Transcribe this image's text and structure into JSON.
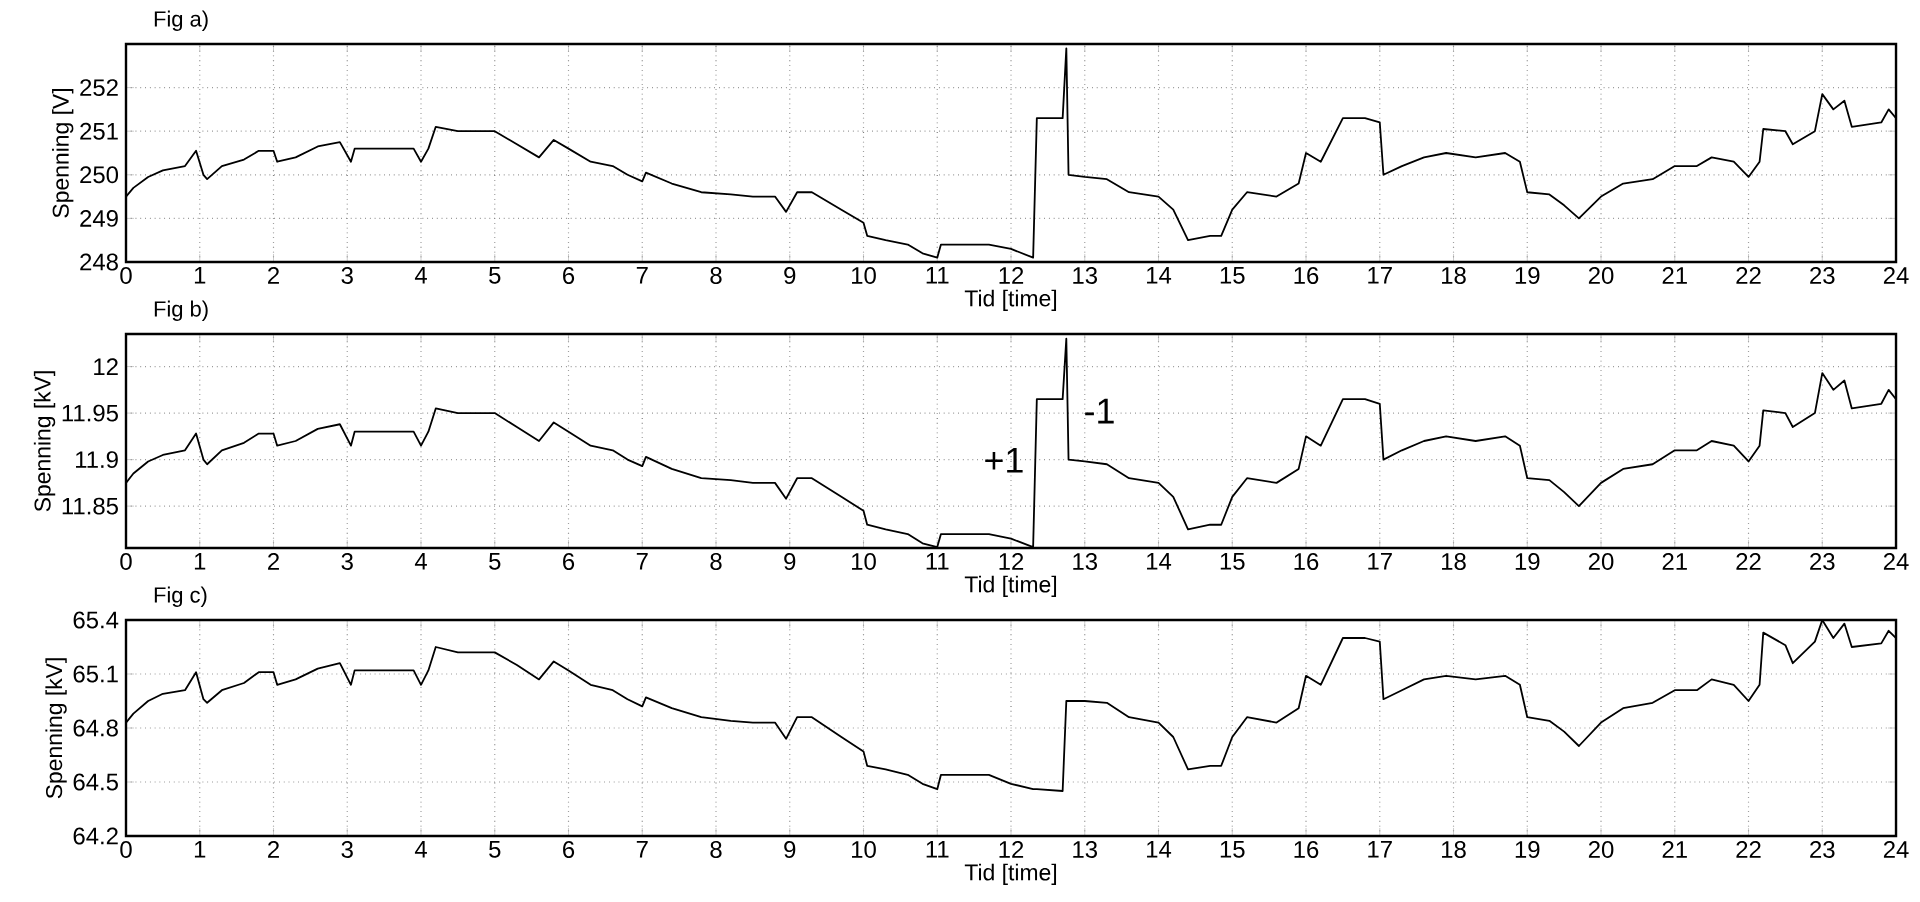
{
  "chart_data": [
    {
      "type": "line",
      "title": "Fig a)",
      "xlabel": "Tid [time]",
      "ylabel": "Spenning [V]",
      "xlim": [
        0,
        24
      ],
      "ylim": [
        248,
        253
      ],
      "xticks": [
        0,
        1,
        2,
        3,
        4,
        5,
        6,
        7,
        8,
        9,
        10,
        11,
        12,
        13,
        14,
        15,
        16,
        17,
        18,
        19,
        20,
        21,
        22,
        23,
        24
      ],
      "yticks": [
        248,
        249,
        250,
        251,
        252
      ],
      "grid": true,
      "x": [
        0,
        0.1,
        0.3,
        0.5,
        0.8,
        0.95,
        1.05,
        1.1,
        1.3,
        1.6,
        1.8,
        2.0,
        2.05,
        2.3,
        2.6,
        2.9,
        3.05,
        3.1,
        3.5,
        3.9,
        4.0,
        4.1,
        4.2,
        4.5,
        5.0,
        5.3,
        5.6,
        5.8,
        6.0,
        6.3,
        6.6,
        6.8,
        7.0,
        7.05,
        7.4,
        7.8,
        8.2,
        8.5,
        8.8,
        8.95,
        9.1,
        9.3,
        9.7,
        10.0,
        10.05,
        10.3,
        10.6,
        10.8,
        11.0,
        11.05,
        11.3,
        11.7,
        12.0,
        12.3,
        12.35,
        12.7,
        12.75,
        12.78,
        13.0,
        13.3,
        13.6,
        14.0,
        14.2,
        14.4,
        14.7,
        14.85,
        15.0,
        15.2,
        15.6,
        15.9,
        16.0,
        16.2,
        16.5,
        16.8,
        17.0,
        17.05,
        17.3,
        17.6,
        17.9,
        18.3,
        18.7,
        18.9,
        19.0,
        19.3,
        19.5,
        19.7,
        20.0,
        20.3,
        20.7,
        21.0,
        21.3,
        21.5,
        21.8,
        22.0,
        22.15,
        22.2,
        22.5,
        22.6,
        22.9,
        23.0,
        23.15,
        23.3,
        23.4,
        23.8,
        23.9,
        24
      ],
      "series": [
        {
          "color": "#000000",
          "values": [
            249.5,
            249.7,
            249.95,
            250.1,
            250.2,
            250.55,
            250.0,
            249.9,
            250.2,
            250.35,
            250.55,
            250.55,
            250.3,
            250.4,
            250.65,
            250.75,
            250.3,
            250.6,
            250.6,
            250.6,
            250.3,
            250.6,
            251.1,
            251.0,
            251.0,
            250.7,
            250.4,
            250.8,
            250.6,
            250.3,
            250.2,
            250.0,
            249.85,
            250.05,
            249.8,
            249.6,
            249.55,
            249.5,
            249.5,
            249.15,
            249.6,
            249.6,
            249.2,
            248.9,
            248.6,
            248.5,
            248.4,
            248.2,
            248.1,
            248.4,
            248.4,
            248.4,
            248.3,
            248.1,
            251.3,
            251.3,
            252.9,
            250.0,
            249.95,
            249.9,
            249.6,
            249.5,
            249.2,
            248.5,
            248.6,
            248.6,
            249.2,
            249.6,
            249.5,
            249.8,
            250.5,
            250.3,
            251.3,
            251.3,
            251.2,
            250.0,
            250.2,
            250.4,
            250.5,
            250.4,
            250.5,
            250.3,
            249.6,
            249.55,
            249.3,
            249.0,
            249.5,
            249.8,
            249.9,
            250.2,
            250.2,
            250.4,
            250.3,
            249.95,
            250.3,
            251.05,
            251.0,
            250.7,
            251.0,
            251.85,
            251.5,
            251.7,
            251.1,
            251.2,
            251.5,
            251.3
          ]
        }
      ]
    },
    {
      "type": "line",
      "title": "Fig b)",
      "xlabel": "Tid [time]",
      "ylabel": "Spenning [kV]",
      "xlim": [
        0,
        24
      ],
      "ylim": [
        11.805,
        12.035
      ],
      "xticks": [
        0,
        1,
        2,
        3,
        4,
        5,
        6,
        7,
        8,
        9,
        10,
        11,
        12,
        13,
        14,
        15,
        16,
        17,
        18,
        19,
        20,
        21,
        22,
        23,
        24
      ],
      "yticks": [
        11.85,
        11.9,
        11.95,
        12
      ],
      "grid": true,
      "annotations": [
        "+1",
        "-1"
      ],
      "x": [
        0,
        0.1,
        0.3,
        0.5,
        0.8,
        0.95,
        1.05,
        1.1,
        1.3,
        1.6,
        1.8,
        2.0,
        2.05,
        2.3,
        2.6,
        2.9,
        3.05,
        3.1,
        3.5,
        3.9,
        4.0,
        4.1,
        4.2,
        4.5,
        5.0,
        5.3,
        5.6,
        5.8,
        6.0,
        6.3,
        6.6,
        6.8,
        7.0,
        7.05,
        7.4,
        7.8,
        8.2,
        8.5,
        8.8,
        8.95,
        9.1,
        9.3,
        9.7,
        10.0,
        10.05,
        10.3,
        10.6,
        10.8,
        11.0,
        11.05,
        11.3,
        11.7,
        12.0,
        12.3,
        12.35,
        12.7,
        12.75,
        12.78,
        13.0,
        13.3,
        13.6,
        14.0,
        14.2,
        14.4,
        14.7,
        14.85,
        15.0,
        15.2,
        15.6,
        15.9,
        16.0,
        16.2,
        16.5,
        16.8,
        17.0,
        17.05,
        17.3,
        17.6,
        17.9,
        18.3,
        18.7,
        18.9,
        19.0,
        19.3,
        19.5,
        19.7,
        20.0,
        20.3,
        20.7,
        21.0,
        21.3,
        21.5,
        21.8,
        22.0,
        22.15,
        22.2,
        22.5,
        22.6,
        22.9,
        23.0,
        23.15,
        23.3,
        23.4,
        23.8,
        23.9,
        24
      ],
      "series": [
        {
          "color": "#000000",
          "values": [
            11.875,
            11.885,
            11.898,
            11.905,
            11.91,
            11.928,
            11.9,
            11.895,
            11.91,
            11.918,
            11.928,
            11.928,
            11.915,
            11.92,
            11.933,
            11.938,
            11.915,
            11.93,
            11.93,
            11.93,
            11.915,
            11.93,
            11.955,
            11.95,
            11.95,
            11.935,
            11.92,
            11.94,
            11.93,
            11.915,
            11.91,
            11.9,
            11.893,
            11.903,
            11.89,
            11.88,
            11.878,
            11.875,
            11.875,
            11.858,
            11.88,
            11.88,
            11.86,
            11.845,
            11.83,
            11.825,
            11.82,
            11.81,
            11.806,
            11.82,
            11.82,
            11.82,
            11.815,
            11.806,
            11.965,
            11.965,
            12.03,
            11.9,
            11.898,
            11.895,
            11.88,
            11.875,
            11.86,
            11.825,
            11.83,
            11.83,
            11.86,
            11.88,
            11.875,
            11.89,
            11.925,
            11.915,
            11.965,
            11.965,
            11.96,
            11.9,
            11.91,
            11.92,
            11.925,
            11.92,
            11.925,
            11.915,
            11.88,
            11.878,
            11.865,
            11.85,
            11.875,
            11.89,
            11.895,
            11.91,
            11.91,
            11.92,
            11.915,
            11.898,
            11.915,
            11.953,
            11.95,
            11.935,
            11.95,
            11.993,
            11.975,
            11.985,
            11.955,
            11.96,
            11.975,
            11.965
          ]
        }
      ]
    },
    {
      "type": "line",
      "title": "Fig c)",
      "xlabel": "Tid [time]",
      "ylabel": "Spenning [kV]",
      "xlim": [
        0,
        24
      ],
      "ylim": [
        64.2,
        65.4
      ],
      "xticks": [
        0,
        1,
        2,
        3,
        4,
        5,
        6,
        7,
        8,
        9,
        10,
        11,
        12,
        13,
        14,
        15,
        16,
        17,
        18,
        19,
        20,
        21,
        22,
        23,
        24
      ],
      "yticks": [
        64.2,
        64.5,
        64.8,
        65.1,
        65.4
      ],
      "grid": true,
      "x": [
        0,
        0.1,
        0.3,
        0.5,
        0.8,
        0.95,
        1.05,
        1.1,
        1.3,
        1.6,
        1.8,
        2.0,
        2.05,
        2.3,
        2.6,
        2.9,
        3.05,
        3.1,
        3.5,
        3.9,
        4.0,
        4.1,
        4.2,
        4.5,
        5.0,
        5.3,
        5.6,
        5.8,
        6.0,
        6.3,
        6.6,
        6.8,
        7.0,
        7.05,
        7.4,
        7.8,
        8.2,
        8.5,
        8.8,
        8.95,
        9.1,
        9.3,
        9.7,
        10.0,
        10.05,
        10.3,
        10.6,
        10.8,
        11.0,
        11.05,
        11.3,
        11.7,
        12.0,
        12.3,
        12.35,
        12.7,
        12.75,
        12.78,
        13.0,
        13.3,
        13.6,
        14.0,
        14.2,
        14.4,
        14.7,
        14.85,
        15.0,
        15.2,
        15.6,
        15.9,
        16.0,
        16.2,
        16.5,
        16.8,
        17.0,
        17.05,
        17.3,
        17.6,
        17.9,
        18.3,
        18.7,
        18.9,
        19.0,
        19.3,
        19.5,
        19.7,
        20.0,
        20.3,
        20.7,
        21.0,
        21.3,
        21.5,
        21.8,
        22.0,
        22.15,
        22.2,
        22.5,
        22.6,
        22.9,
        23.0,
        23.15,
        23.3,
        23.4,
        23.8,
        23.9,
        24
      ],
      "series": [
        {
          "color": "#000000",
          "values": [
            64.83,
            64.88,
            64.95,
            64.99,
            65.01,
            65.11,
            64.96,
            64.94,
            65.01,
            65.05,
            65.11,
            65.11,
            65.04,
            65.07,
            65.13,
            65.16,
            65.04,
            65.12,
            65.12,
            65.12,
            65.04,
            65.12,
            65.25,
            65.22,
            65.22,
            65.15,
            65.07,
            65.17,
            65.12,
            65.04,
            65.01,
            64.96,
            64.92,
            64.97,
            64.91,
            64.86,
            64.84,
            64.83,
            64.83,
            64.74,
            64.86,
            64.86,
            64.75,
            64.67,
            64.59,
            64.57,
            64.54,
            64.49,
            64.46,
            64.54,
            64.54,
            64.54,
            64.49,
            64.46,
            64.46,
            64.45,
            64.95,
            64.95,
            64.95,
            64.94,
            64.86,
            64.83,
            64.75,
            64.57,
            64.59,
            64.59,
            64.75,
            64.86,
            64.83,
            64.91,
            65.09,
            65.04,
            65.3,
            65.3,
            65.28,
            64.96,
            65.01,
            65.07,
            65.09,
            65.07,
            65.09,
            65.04,
            64.86,
            64.84,
            64.78,
            64.7,
            64.83,
            64.91,
            64.94,
            65.01,
            65.01,
            65.07,
            65.04,
            64.95,
            65.04,
            65.33,
            65.26,
            65.16,
            65.28,
            65.4,
            65.3,
            65.38,
            65.25,
            65.27,
            65.34,
            65.3
          ]
        }
      ]
    }
  ]
}
